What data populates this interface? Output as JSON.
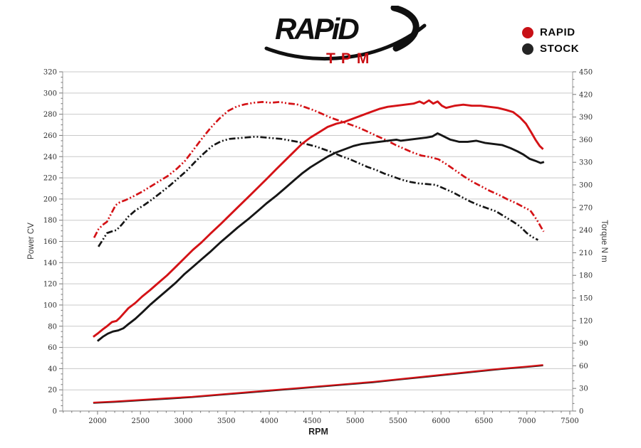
{
  "page": {
    "background": "#ffffff"
  },
  "header": {
    "logo_main": "RAPiD",
    "logo_sub": "TPM",
    "logo_main_color": "#101010",
    "logo_sub_color": "#c90d12"
  },
  "legend": {
    "items": [
      {
        "label": "RAPID",
        "color": "#c81016"
      },
      {
        "label": "STOCK",
        "color": "#242424"
      }
    ]
  },
  "chart_data": {
    "type": "line",
    "xlabel": "RPM",
    "ylabel_left": "Power CV",
    "ylabel_right": "Torque N m",
    "xlim": [
      1594,
      7533
    ],
    "x_label_min": 2000,
    "x_label_max": 7500,
    "x_major_step": 500,
    "x_minor_step": 100,
    "left_lim": [
      0,
      320
    ],
    "left_major_step": 20,
    "left_minor_step": 5,
    "right_lim": [
      0,
      450
    ],
    "right_major_step": 30,
    "right_minor_step": 10,
    "grid": {
      "horizontal": true,
      "vertical": false,
      "color": "#c9c9c9"
    },
    "legend_position": "top-right",
    "axis_color": "#9a9a9a",
    "series": [
      {
        "name": "rapid-torque",
        "label": "RAPID torque (N m)",
        "axis": "right",
        "color": "#d41216",
        "style": "dash-dot-dot",
        "width": 2.7,
        "peak": 410,
        "points": [
          [
            1960,
            230
          ],
          [
            2010,
            241
          ],
          [
            2060,
            247
          ],
          [
            2110,
            251
          ],
          [
            2160,
            262
          ],
          [
            2210,
            273
          ],
          [
            2260,
            277
          ],
          [
            2330,
            280
          ],
          [
            2420,
            285
          ],
          [
            2520,
            291
          ],
          [
            2620,
            298
          ],
          [
            2720,
            305
          ],
          [
            2820,
            312
          ],
          [
            2920,
            321
          ],
          [
            3020,
            332
          ],
          [
            3120,
            347
          ],
          [
            3220,
            362
          ],
          [
            3320,
            376
          ],
          [
            3420,
            388
          ],
          [
            3520,
            398
          ],
          [
            3620,
            404
          ],
          [
            3720,
            407
          ],
          [
            3820,
            409
          ],
          [
            3920,
            410
          ],
          [
            4020,
            409
          ],
          [
            4120,
            410
          ],
          [
            4220,
            408
          ],
          [
            4320,
            407
          ],
          [
            4420,
            403
          ],
          [
            4520,
            399
          ],
          [
            4620,
            394
          ],
          [
            4720,
            389
          ],
          [
            4820,
            385
          ],
          [
            4920,
            381
          ],
          [
            5020,
            377
          ],
          [
            5120,
            372
          ],
          [
            5270,
            364
          ],
          [
            5370,
            359
          ],
          [
            5470,
            353
          ],
          [
            5570,
            348
          ],
          [
            5670,
            343
          ],
          [
            5770,
            339
          ],
          [
            5870,
            337
          ],
          [
            5970,
            334
          ],
          [
            6070,
            327
          ],
          [
            6170,
            319
          ],
          [
            6270,
            311
          ],
          [
            6370,
            304
          ],
          [
            6470,
            298
          ],
          [
            6570,
            292
          ],
          [
            6670,
            287
          ],
          [
            6770,
            281
          ],
          [
            6870,
            276
          ],
          [
            6970,
            270
          ],
          [
            7040,
            266
          ],
          [
            7090,
            258
          ],
          [
            7130,
            251
          ],
          [
            7170,
            243
          ],
          [
            7195,
            238
          ]
        ]
      },
      {
        "name": "stock-torque",
        "label": "STOCK torque (N m)",
        "axis": "right",
        "color": "#161616",
        "style": "dash-dot-dot",
        "width": 2.7,
        "peak": 364,
        "points": [
          [
            2010,
            218
          ],
          [
            2060,
            227
          ],
          [
            2110,
            236
          ],
          [
            2160,
            238
          ],
          [
            2220,
            240
          ],
          [
            2280,
            247
          ],
          [
            2360,
            258
          ],
          [
            2440,
            266
          ],
          [
            2540,
            273
          ],
          [
            2640,
            281
          ],
          [
            2740,
            290
          ],
          [
            2840,
            299
          ],
          [
            2940,
            309
          ],
          [
            3040,
            319
          ],
          [
            3140,
            331
          ],
          [
            3240,
            342
          ],
          [
            3340,
            352
          ],
          [
            3440,
            358
          ],
          [
            3540,
            361
          ],
          [
            3640,
            362
          ],
          [
            3740,
            363
          ],
          [
            3840,
            364
          ],
          [
            3940,
            363
          ],
          [
            4040,
            362
          ],
          [
            4140,
            361
          ],
          [
            4240,
            359
          ],
          [
            4340,
            357
          ],
          [
            4440,
            354
          ],
          [
            4540,
            351
          ],
          [
            4640,
            347
          ],
          [
            4740,
            343
          ],
          [
            4840,
            338
          ],
          [
            4940,
            334
          ],
          [
            5040,
            329
          ],
          [
            5140,
            324
          ],
          [
            5240,
            320
          ],
          [
            5340,
            315
          ],
          [
            5440,
            311
          ],
          [
            5540,
            307
          ],
          [
            5640,
            304
          ],
          [
            5740,
            302
          ],
          [
            5840,
            301
          ],
          [
            5940,
            300
          ],
          [
            6040,
            295
          ],
          [
            6140,
            290
          ],
          [
            6240,
            284
          ],
          [
            6340,
            278
          ],
          [
            6440,
            273
          ],
          [
            6540,
            269
          ],
          [
            6640,
            265
          ],
          [
            6740,
            258
          ],
          [
            6840,
            251
          ],
          [
            6920,
            245
          ],
          [
            7000,
            236
          ],
          [
            7060,
            231
          ],
          [
            7130,
            227
          ]
        ]
      },
      {
        "name": "rapid-power",
        "label": "RAPID power (CV)",
        "axis": "left",
        "color": "#d41216",
        "style": "solid",
        "width": 2.9,
        "peak": 293,
        "points": [
          [
            1950,
            70
          ],
          [
            2000,
            73
          ],
          [
            2060,
            77
          ],
          [
            2110,
            80
          ],
          [
            2170,
            84
          ],
          [
            2220,
            85
          ],
          [
            2260,
            88
          ],
          [
            2360,
            97
          ],
          [
            2440,
            102
          ],
          [
            2520,
            108
          ],
          [
            2610,
            114
          ],
          [
            2710,
            121
          ],
          [
            2810,
            128
          ],
          [
            2910,
            136
          ],
          [
            3010,
            144
          ],
          [
            3110,
            152
          ],
          [
            3210,
            159
          ],
          [
            3310,
            167
          ],
          [
            3430,
            176
          ],
          [
            3530,
            184
          ],
          [
            3630,
            192
          ],
          [
            3770,
            203
          ],
          [
            3870,
            211
          ],
          [
            3970,
            219
          ],
          [
            4080,
            228
          ],
          [
            4180,
            236
          ],
          [
            4280,
            244
          ],
          [
            4380,
            252
          ],
          [
            4480,
            258
          ],
          [
            4580,
            263
          ],
          [
            4680,
            268
          ],
          [
            4780,
            271
          ],
          [
            4880,
            273
          ],
          [
            4980,
            276
          ],
          [
            5080,
            279
          ],
          [
            5180,
            282
          ],
          [
            5280,
            285
          ],
          [
            5380,
            287
          ],
          [
            5480,
            288
          ],
          [
            5580,
            289
          ],
          [
            5680,
            290
          ],
          [
            5750,
            292
          ],
          [
            5800,
            290
          ],
          [
            5860,
            293
          ],
          [
            5910,
            290
          ],
          [
            5960,
            292
          ],
          [
            6010,
            288
          ],
          [
            6060,
            286
          ],
          [
            6110,
            287
          ],
          [
            6160,
            288
          ],
          [
            6260,
            289
          ],
          [
            6360,
            288
          ],
          [
            6460,
            288
          ],
          [
            6560,
            287
          ],
          [
            6660,
            286
          ],
          [
            6760,
            284
          ],
          [
            6840,
            282
          ],
          [
            6920,
            277
          ],
          [
            6990,
            271
          ],
          [
            7050,
            263
          ],
          [
            7100,
            256
          ],
          [
            7150,
            250
          ],
          [
            7190,
            247
          ]
        ]
      },
      {
        "name": "stock-power",
        "label": "STOCK power (CV)",
        "axis": "left",
        "color": "#161616",
        "style": "solid",
        "width": 2.9,
        "peak": 262,
        "points": [
          [
            2000,
            66
          ],
          [
            2060,
            70
          ],
          [
            2120,
            73
          ],
          [
            2180,
            75
          ],
          [
            2240,
            76
          ],
          [
            2300,
            78
          ],
          [
            2360,
            82
          ],
          [
            2440,
            87
          ],
          [
            2520,
            93
          ],
          [
            2610,
            100
          ],
          [
            2710,
            107
          ],
          [
            2810,
            114
          ],
          [
            2910,
            121
          ],
          [
            3010,
            129
          ],
          [
            3110,
            136
          ],
          [
            3210,
            143
          ],
          [
            3310,
            150
          ],
          [
            3430,
            159
          ],
          [
            3530,
            166
          ],
          [
            3630,
            173
          ],
          [
            3770,
            182
          ],
          [
            3870,
            189
          ],
          [
            3970,
            196
          ],
          [
            4080,
            203
          ],
          [
            4180,
            210
          ],
          [
            4280,
            217
          ],
          [
            4380,
            224
          ],
          [
            4480,
            230
          ],
          [
            4580,
            235
          ],
          [
            4680,
            240
          ],
          [
            4780,
            244
          ],
          [
            4880,
            247
          ],
          [
            4980,
            250
          ],
          [
            5080,
            252
          ],
          [
            5180,
            253
          ],
          [
            5280,
            254
          ],
          [
            5380,
            255
          ],
          [
            5480,
            256
          ],
          [
            5530,
            255
          ],
          [
            5630,
            256
          ],
          [
            5730,
            257
          ],
          [
            5830,
            258
          ],
          [
            5900,
            259
          ],
          [
            5960,
            262
          ],
          [
            6010,
            260
          ],
          [
            6060,
            258
          ],
          [
            6110,
            256
          ],
          [
            6210,
            254
          ],
          [
            6310,
            254
          ],
          [
            6410,
            255
          ],
          [
            6510,
            253
          ],
          [
            6610,
            252
          ],
          [
            6710,
            251
          ],
          [
            6810,
            248
          ],
          [
            6890,
            245
          ],
          [
            6960,
            242
          ],
          [
            7030,
            238
          ],
          [
            7100,
            236
          ],
          [
            7160,
            234
          ],
          [
            7200,
            235
          ]
        ]
      },
      {
        "name": "stock-bottom-line",
        "label": "STOCK low line",
        "axis": "left",
        "color": "#161616",
        "style": "solid",
        "width": 2.1,
        "points": [
          [
            1950,
            7.6
          ],
          [
            2200,
            8.5
          ],
          [
            2500,
            10
          ],
          [
            2800,
            11.5
          ],
          [
            3100,
            13
          ],
          [
            3400,
            15
          ],
          [
            3700,
            17
          ],
          [
            4000,
            19
          ],
          [
            4300,
            21
          ],
          [
            4600,
            23
          ],
          [
            4900,
            25
          ],
          [
            5200,
            27
          ],
          [
            5500,
            29.5
          ],
          [
            5800,
            32
          ],
          [
            6100,
            34.5
          ],
          [
            6400,
            37
          ],
          [
            6700,
            39.5
          ],
          [
            7000,
            41.5
          ],
          [
            7190,
            43
          ]
        ]
      },
      {
        "name": "rapid-bottom-line",
        "label": "RAPID low line",
        "axis": "left",
        "color": "#d41216",
        "style": "solid",
        "width": 2.1,
        "points": [
          [
            1950,
            8
          ],
          [
            2200,
            9
          ],
          [
            2500,
            10.5
          ],
          [
            2800,
            12
          ],
          [
            3100,
            13.5
          ],
          [
            3400,
            15.5
          ],
          [
            3700,
            17.5
          ],
          [
            4000,
            19.5
          ],
          [
            4300,
            21.5
          ],
          [
            4600,
            23.5
          ],
          [
            4900,
            25.5
          ],
          [
            5200,
            27.5
          ],
          [
            5500,
            30
          ],
          [
            5800,
            32.5
          ],
          [
            6100,
            35
          ],
          [
            6400,
            37.5
          ],
          [
            6700,
            40
          ],
          [
            7000,
            42
          ],
          [
            7190,
            43.5
          ]
        ]
      }
    ]
  }
}
